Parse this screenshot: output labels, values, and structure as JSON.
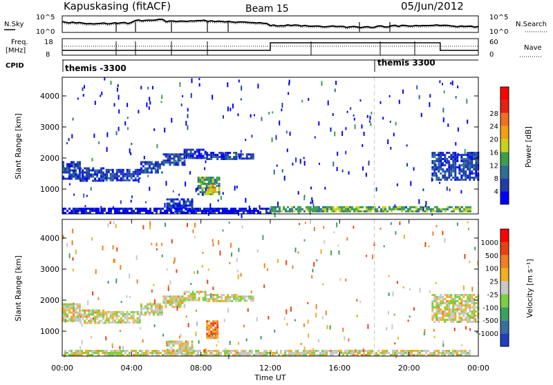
{
  "header": {
    "radar": "Kapuskasing (fitACF)",
    "beam": "Beam 15",
    "date": "05/Jun/2012"
  },
  "noise_panel": {
    "left_label": "N.Sky",
    "left_ticks": [
      "10^5",
      "10^0"
    ],
    "right_label": "N.Search",
    "right_ticks": [
      "10^5",
      "10^0"
    ]
  },
  "freq_panel": {
    "left_label_1": "Freq.",
    "left_label_2": "[MHz]",
    "left_ticks": [
      "18",
      "8"
    ],
    "right_label": "Nave",
    "right_ticks": [
      "60",
      "0"
    ],
    "cpid_label": "CPID",
    "cpid_1": "themis -3300",
    "cpid_2": "themis 3300"
  },
  "chart_data": [
    {
      "type": "heatmap",
      "name": "power",
      "ylabel": "Slant Range [km]",
      "yticks": [
        "1000",
        "2000",
        "3000",
        "4000"
      ],
      "ylim": [
        200,
        4600
      ],
      "xlim": [
        0,
        24
      ],
      "colorbar": {
        "label": "Power [dB]",
        "ticks": [
          "4",
          "8",
          "12",
          "16",
          "20",
          "24",
          "28"
        ],
        "colors": [
          "#0000ff",
          "#1e3ea8",
          "#2e6f93",
          "#39a04a",
          "#c8d218",
          "#f0a010",
          "#f07020",
          "#e82010",
          "#ff0000"
        ]
      },
      "bands": [
        {
          "x0": 0.0,
          "x1": 1.0,
          "y0": 1300,
          "y1": 1900,
          "level": 1
        },
        {
          "x0": 1.0,
          "x1": 2.5,
          "y0": 1250,
          "y1": 1700,
          "level": 1
        },
        {
          "x0": 2.5,
          "x1": 4.5,
          "y0": 1300,
          "y1": 1650,
          "level": 1
        },
        {
          "x0": 4.5,
          "x1": 5.8,
          "y0": 1500,
          "y1": 1900,
          "level": 1
        },
        {
          "x0": 5.8,
          "x1": 7.0,
          "y0": 1800,
          "y1": 2150,
          "level": 1
        },
        {
          "x0": 7.0,
          "x1": 8.3,
          "y0": 2000,
          "y1": 2300,
          "level": 1
        },
        {
          "x0": 8.3,
          "x1": 10.0,
          "y0": 1950,
          "y1": 2200,
          "level": 1
        },
        {
          "x0": 10.0,
          "x1": 11.0,
          "y0": 1950,
          "y1": 2150,
          "level": 1
        },
        {
          "x0": 7.8,
          "x1": 9.0,
          "y0": 800,
          "y1": 1400,
          "level": 3
        },
        {
          "x0": 8.4,
          "x1": 8.8,
          "y0": 900,
          "y1": 1150,
          "level": 5
        },
        {
          "x0": 6.0,
          "x1": 7.5,
          "y0": 250,
          "y1": 700,
          "level": 1
        },
        {
          "x0": 0.0,
          "x1": 12.0,
          "y0": 250,
          "y1": 400,
          "level": 0
        },
        {
          "x0": 12.0,
          "x1": 23.5,
          "y0": 250,
          "y1": 450,
          "level": 3
        },
        {
          "x0": 21.3,
          "x1": 24.0,
          "y0": 1300,
          "y1": 2200,
          "level": 1
        }
      ]
    },
    {
      "type": "heatmap",
      "name": "velocity",
      "ylabel": "Slant Range [km]",
      "yticks": [
        "1000",
        "2000",
        "3000",
        "4000"
      ],
      "ylim": [
        200,
        4600
      ],
      "xlim": [
        0,
        24
      ],
      "xlabel": "Time UT",
      "xticks": [
        "00:00",
        "04:00",
        "08:00",
        "12:00",
        "16:00",
        "20:00",
        "00:00"
      ],
      "colorbar": {
        "label": "Velocity [m s⁻¹]",
        "ticks": [
          "1000",
          "500",
          "100",
          "25",
          "-25",
          "-100",
          "-500",
          "-1000"
        ],
        "colors": [
          "#2040c0",
          "#3a6fa0",
          "#3aa060",
          "#7ad040",
          "#c8c8c8",
          "#f0b020",
          "#f08020",
          "#e84010",
          "#ff0000"
        ]
      },
      "bands": [
        {
          "x0": 0.0,
          "x1": 1.0,
          "y0": 1300,
          "y1": 1900,
          "level": 4
        },
        {
          "x0": 1.0,
          "x1": 2.5,
          "y0": 1250,
          "y1": 1700,
          "level": 4
        },
        {
          "x0": 2.5,
          "x1": 4.5,
          "y0": 1300,
          "y1": 1650,
          "level": 4
        },
        {
          "x0": 4.5,
          "x1": 5.8,
          "y0": 1500,
          "y1": 1900,
          "level": 4
        },
        {
          "x0": 5.8,
          "x1": 7.0,
          "y0": 1800,
          "y1": 2150,
          "level": 4
        },
        {
          "x0": 7.0,
          "x1": 8.3,
          "y0": 2000,
          "y1": 2300,
          "level": 4
        },
        {
          "x0": 8.3,
          "x1": 10.0,
          "y0": 1950,
          "y1": 2200,
          "level": 4
        },
        {
          "x0": 10.0,
          "x1": 11.0,
          "y0": 1950,
          "y1": 2150,
          "level": 4
        },
        {
          "x0": 8.3,
          "x1": 8.9,
          "y0": 800,
          "y1": 1350,
          "level": 6
        },
        {
          "x0": 6.0,
          "x1": 7.5,
          "y0": 250,
          "y1": 700,
          "level": 4
        },
        {
          "x0": 0.0,
          "x1": 23.5,
          "y0": 250,
          "y1": 400,
          "level": 4
        },
        {
          "x0": 21.3,
          "x1": 24.0,
          "y0": 1300,
          "y1": 2200,
          "level": 4
        }
      ]
    }
  ]
}
